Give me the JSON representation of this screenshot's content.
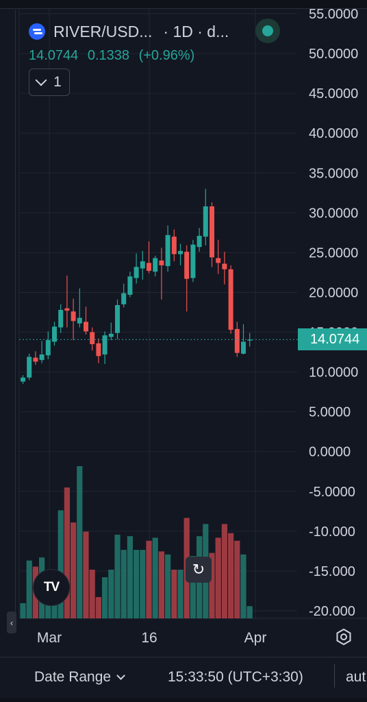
{
  "header": {
    "symbol": "RIVER/USD...",
    "interval": "· 1D · d...",
    "last_price": "14.0744",
    "change": "0.1338",
    "change_pct": "(+0.96%)",
    "collapse_label": "1"
  },
  "price_tag": "14.0744",
  "time_axis": [
    "Mar",
    "16",
    "Apr"
  ],
  "bottom_bar": {
    "date_range": "Date Range",
    "clock": "15:33:50 (UTC+3:30)",
    "auto": "aut"
  },
  "tv_logo": "TV",
  "colors": {
    "background": "#131722",
    "up": "#26a69a",
    "down": "#ef5350",
    "up_volume": "#1f6b63",
    "down_volume": "#9c3a42",
    "grid": "#232733",
    "text": "#d1d4dc"
  },
  "chart_data": {
    "type": "candlestick",
    "y_tick_labels": [
      "55.0000",
      "50.0000",
      "45.0000",
      "40.0000",
      "35.0000",
      "30.0000",
      "25.0000",
      "20.0000",
      "15.0000",
      "10.0000",
      "5.0000",
      "0.0000",
      "-5.0000",
      "-10.000",
      "-15.000",
      "-20.000"
    ],
    "ylim": [
      -20,
      55
    ],
    "x_tick_labels": [
      "Mar",
      "16",
      "Apr"
    ],
    "grid": true,
    "last_price": 14.0744,
    "ohlc": [
      {
        "o": 8.8,
        "h": 9.6,
        "l": 8.5,
        "c": 9.3
      },
      {
        "o": 9.3,
        "h": 12.3,
        "l": 9.0,
        "c": 11.9
      },
      {
        "o": 11.8,
        "h": 12.6,
        "l": 10.9,
        "c": 11.3
      },
      {
        "o": 11.5,
        "h": 13.9,
        "l": 11.1,
        "c": 12.2
      },
      {
        "o": 12.1,
        "h": 15.1,
        "l": 11.6,
        "c": 14.0
      },
      {
        "o": 13.8,
        "h": 16.3,
        "l": 13.3,
        "c": 15.7
      },
      {
        "o": 15.6,
        "h": 18.5,
        "l": 14.9,
        "c": 17.8
      },
      {
        "o": 18.0,
        "h": 22.1,
        "l": 15.6,
        "c": 17.7
      },
      {
        "o": 17.6,
        "h": 19.2,
        "l": 14.0,
        "c": 16.4
      },
      {
        "o": 16.1,
        "h": 20.5,
        "l": 15.6,
        "c": 16.8
      },
      {
        "o": 16.3,
        "h": 18.2,
        "l": 14.7,
        "c": 15.1
      },
      {
        "o": 15.0,
        "h": 15.6,
        "l": 12.7,
        "c": 13.5
      },
      {
        "o": 13.6,
        "h": 14.2,
        "l": 11.1,
        "c": 12.0
      },
      {
        "o": 12.2,
        "h": 15.1,
        "l": 11.0,
        "c": 14.6
      },
      {
        "o": 14.4,
        "h": 16.2,
        "l": 14.0,
        "c": 14.8
      },
      {
        "o": 14.9,
        "h": 19.1,
        "l": 14.1,
        "c": 18.4
      },
      {
        "o": 18.5,
        "h": 21.1,
        "l": 18.1,
        "c": 19.9
      },
      {
        "o": 19.7,
        "h": 22.6,
        "l": 19.4,
        "c": 22.0
      },
      {
        "o": 21.8,
        "h": 24.9,
        "l": 21.1,
        "c": 23.2
      },
      {
        "o": 23.0,
        "h": 25.2,
        "l": 21.6,
        "c": 23.9
      },
      {
        "o": 23.7,
        "h": 26.4,
        "l": 22.4,
        "c": 22.7
      },
      {
        "o": 22.6,
        "h": 24.6,
        "l": 22.0,
        "c": 24.3
      },
      {
        "o": 24.0,
        "h": 25.6,
        "l": 19.1,
        "c": 23.4
      },
      {
        "o": 23.3,
        "h": 28.4,
        "l": 22.6,
        "c": 27.2
      },
      {
        "o": 27.0,
        "h": 27.9,
        "l": 23.9,
        "c": 24.8
      },
      {
        "o": 24.8,
        "h": 26.1,
        "l": 23.4,
        "c": 25.2
      },
      {
        "o": 25.1,
        "h": 25.9,
        "l": 17.6,
        "c": 21.7
      },
      {
        "o": 21.8,
        "h": 26.6,
        "l": 21.3,
        "c": 26.0
      },
      {
        "o": 25.7,
        "h": 28.1,
        "l": 25.1,
        "c": 27.1
      },
      {
        "o": 27.0,
        "h": 33.0,
        "l": 25.9,
        "c": 30.8
      },
      {
        "o": 30.8,
        "h": 31.3,
        "l": 23.2,
        "c": 24.4
      },
      {
        "o": 24.3,
        "h": 26.6,
        "l": 22.3,
        "c": 23.7
      },
      {
        "o": 23.6,
        "h": 25.1,
        "l": 21.0,
        "c": 22.9
      },
      {
        "o": 22.9,
        "h": 23.4,
        "l": 14.8,
        "c": 15.3
      },
      {
        "o": 15.4,
        "h": 16.3,
        "l": 11.9,
        "c": 12.4
      },
      {
        "o": 12.3,
        "h": 16.0,
        "l": 12.2,
        "c": 13.8
      },
      {
        "o": 14.0,
        "h": 14.9,
        "l": 13.2,
        "c": 14.07
      }
    ],
    "volume_relative": [
      0.1,
      0.38,
      0.34,
      0.4,
      0.24,
      0.3,
      0.71,
      0.86,
      0.63,
      1.0,
      0.57,
      0.32,
      0.14,
      0.27,
      0.32,
      0.55,
      0.45,
      0.54,
      0.45,
      0.45,
      0.51,
      0.53,
      0.44,
      0.42,
      0.32,
      0.32,
      0.66,
      0.41,
      0.54,
      0.62,
      0.43,
      0.53,
      0.62,
      0.56,
      0.51,
      0.42,
      0.08
    ]
  }
}
